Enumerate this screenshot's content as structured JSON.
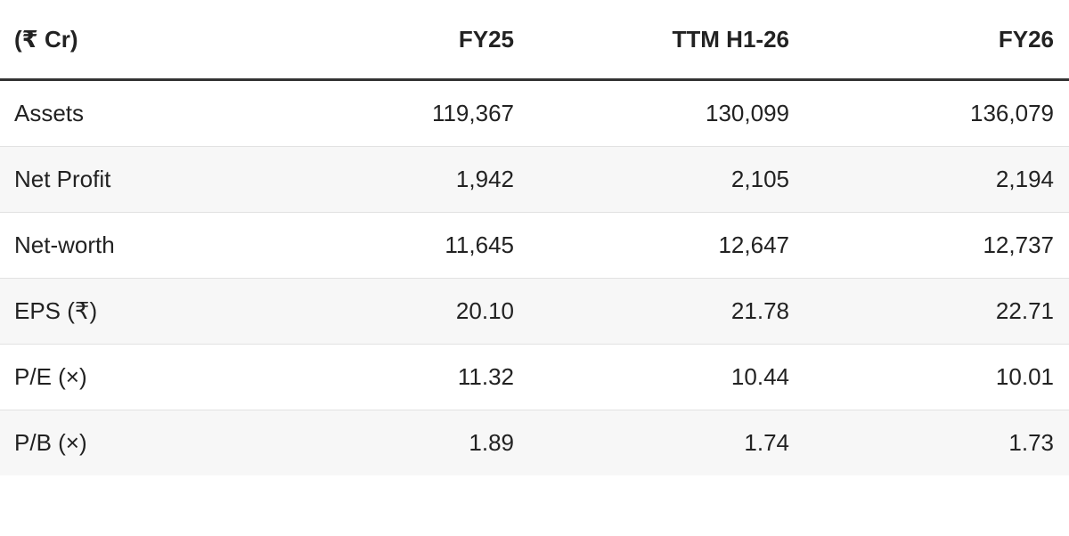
{
  "table": {
    "header": [
      "(₹ Cr)",
      "FY25",
      "TTM H1-26",
      "FY26"
    ],
    "rows": [
      [
        "Assets",
        "119,367",
        "130,099",
        "136,079"
      ],
      [
        "Net Profit",
        "1,942",
        "2,105",
        "2,194"
      ],
      [
        "Net-worth",
        "11,645",
        "12,647",
        "12,737"
      ],
      [
        "EPS (₹)",
        "20.10",
        "21.78",
        "22.71"
      ],
      [
        "P/E (×)",
        "11.32",
        "10.44",
        "10.01"
      ],
      [
        "P/B (×)",
        "1.89",
        "1.74",
        "1.73"
      ]
    ]
  }
}
